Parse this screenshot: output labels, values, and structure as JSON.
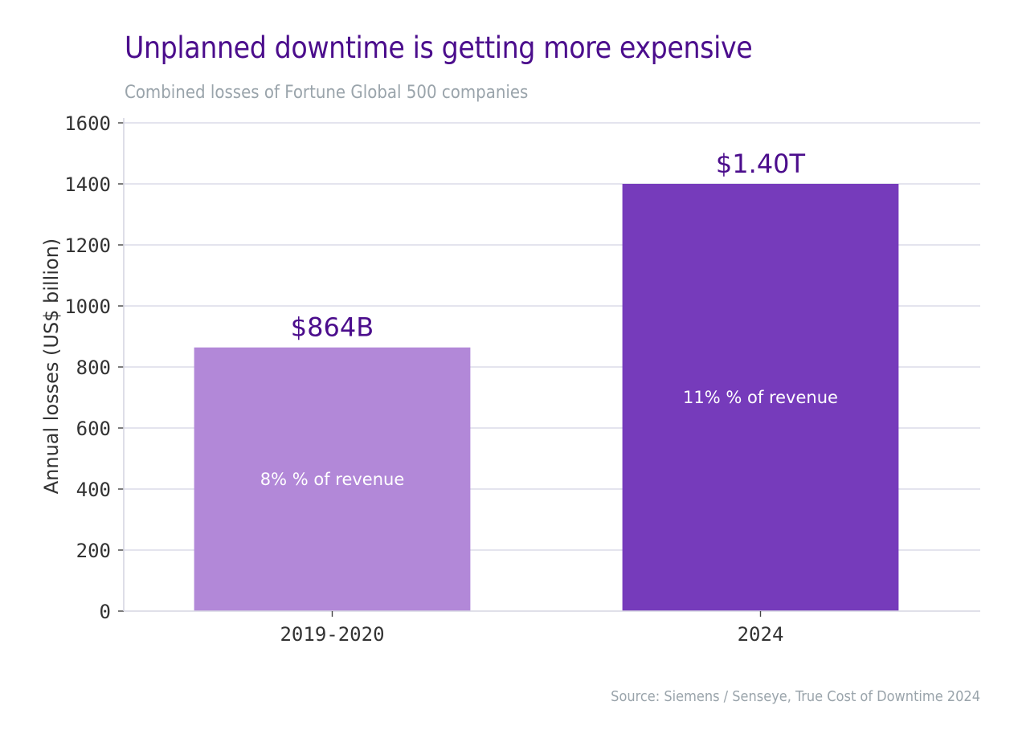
{
  "title": "Unplanned downtime is getting more expensive",
  "subtitle": "Combined losses of Fortune Global 500 companies",
  "source": "Source: Siemens / Senseye, True Cost of Downtime 2024",
  "chart_data": {
    "type": "bar",
    "categories": [
      "2019-2020",
      "2024"
    ],
    "values": [
      864,
      1400
    ],
    "value_labels": [
      "$864B",
      "$1.40T"
    ],
    "inner_labels": [
      "8% % of revenue",
      "11% % of revenue"
    ],
    "colors": [
      "#b288d8",
      "#763bbb"
    ],
    "ylabel": "Annual losses (US$ billion)",
    "ylim": [
      0,
      1600
    ],
    "yticks": [
      0,
      200,
      400,
      600,
      800,
      1000,
      1200,
      1400,
      1600
    ],
    "grid": true
  }
}
